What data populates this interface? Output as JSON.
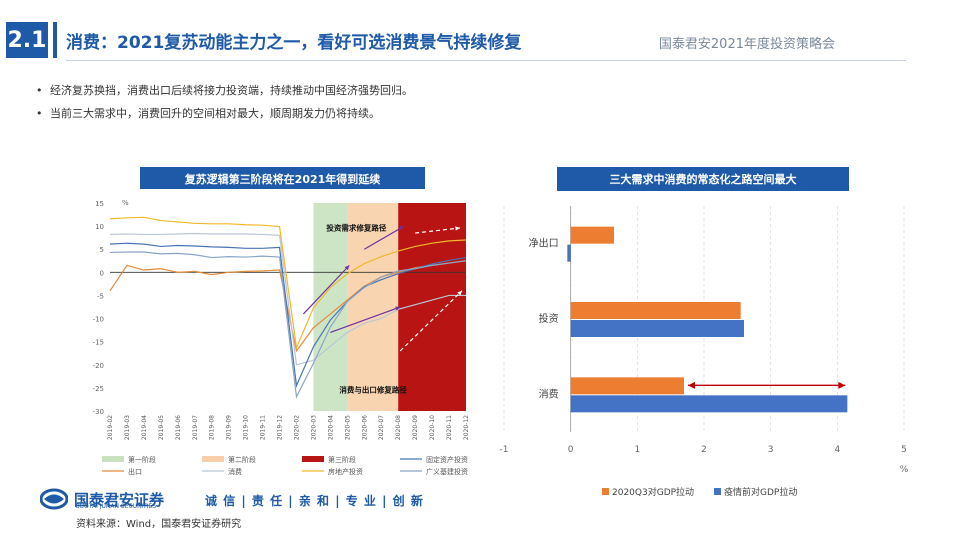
{
  "header": {
    "section_no": "2.1",
    "title": "消费：2021复苏动能主力之一，看好可选消费景气持续修复",
    "right_title": "国泰君安2021年度投资策略会"
  },
  "bullets": [
    "经济复苏换挡，消费出口后续将接力投资端，持续推动中国经济强势回归。",
    "当前三大需求中，消费回升的空间相对最大，顺周期发力仍将持续。"
  ],
  "chart_data": [
    {
      "type": "line",
      "title": "复苏逻辑第三阶段将在2021年得到延续",
      "unit": "%",
      "x": [
        "2019-02",
        "2019-03",
        "2019-04",
        "2019-05",
        "2019-06",
        "2019-07",
        "2019-08",
        "2019-09",
        "2019-10",
        "2019-11",
        "2019-12",
        "2020-02",
        "2020-03",
        "2020-04",
        "2020-05",
        "2020-06",
        "2020-07",
        "2020-08",
        "2020-09",
        "2020-10",
        "2020-11",
        "2020-12"
      ],
      "ylim": [
        -30,
        15
      ],
      "yticks": [
        15,
        10,
        5,
        0,
        -5,
        -10,
        -15,
        -20,
        -25,
        -30
      ],
      "phases": [
        {
          "name": "第一阶段",
          "from": "2020-03",
          "to": "2020-05",
          "color": "#c8e2bf"
        },
        {
          "name": "第二阶段",
          "from": "2020-05",
          "to": "2020-08",
          "color": "#f8cfa8"
        },
        {
          "name": "第三阶段",
          "from": "2020-08",
          "to": "2020-12",
          "color": "#b81414"
        }
      ],
      "series": [
        {
          "name": "出口",
          "color": "#e58a3a",
          "values": [
            -4,
            1.5,
            0.5,
            0.8,
            0,
            0.2,
            -0.5,
            0,
            0.2,
            0.3,
            0.5,
            -17,
            -12,
            -9,
            -6,
            -3,
            -1,
            0,
            1,
            1.5,
            2,
            2.5
          ]
        },
        {
          "name": "消费",
          "color": "#b9c7d6",
          "values": [
            8.2,
            8.3,
            8.2,
            8.2,
            8.3,
            8.4,
            8.3,
            8.3,
            8.3,
            8.2,
            8.0,
            -20,
            -19,
            -16,
            -13,
            -11,
            -10,
            -8,
            -7,
            -6,
            -5,
            -5
          ]
        },
        {
          "name": "房地产投资",
          "color": "#f0b82a",
          "values": [
            11.6,
            11.8,
            11.9,
            11.2,
            10.9,
            10.6,
            10.5,
            10.5,
            10.3,
            10.2,
            9.9,
            -16.3,
            -7.7,
            -3.3,
            -0.3,
            1.9,
            3.4,
            4.6,
            5.6,
            6.3,
            6.8,
            7.0
          ]
        },
        {
          "name": "固定资产投资",
          "color": "#4a74b4",
          "values": [
            6.1,
            6.3,
            6.1,
            5.6,
            5.8,
            5.7,
            5.5,
            5.4,
            5.2,
            5.2,
            5.4,
            -24.5,
            -16.1,
            -10.3,
            -6.3,
            -3.1,
            -1.6,
            -0.3,
            0.8,
            1.8,
            2.6,
            3.2
          ]
        },
        {
          "name": "广义基建投资",
          "color": "#8aa5c8",
          "values": [
            4.3,
            4.4,
            4.4,
            4.0,
            4.1,
            3.8,
            3.2,
            3.4,
            3.3,
            3.5,
            3.3,
            -26.9,
            -19.7,
            -11.8,
            -6.3,
            -3.3,
            -1,
            0.3,
            0.8,
            1.5,
            2.0,
            2.5
          ]
        }
      ],
      "annotations": [
        "投资需求修复路径",
        "消费与出口修复路径"
      ]
    },
    {
      "type": "bar",
      "title": "三大需求中消费的常态化之路空间最大",
      "categories": [
        "净出口",
        "投资",
        "消费"
      ],
      "xlim": [
        -1,
        5
      ],
      "xticks": [
        -1,
        0,
        1,
        2,
        3,
        4,
        5
      ],
      "unit": "%",
      "series": [
        {
          "name": "2020Q3对GDP拉动",
          "color": "#ed7d31",
          "values": [
            0.65,
            2.55,
            1.7
          ]
        },
        {
          "name": "疫情前对GDP拉动",
          "color": "#4472c4",
          "values": [
            -0.05,
            2.6,
            4.15
          ]
        }
      ]
    }
  ],
  "footer": {
    "logo_cn": "国泰君安证券",
    "logo_en": "GUOTAI JUNAN SECURITIES",
    "slogan": "诚 信 | 责 任 | 亲 和 | 专 业 | 创 新",
    "source": "资料来源：Wind，国泰君安证券研究"
  }
}
